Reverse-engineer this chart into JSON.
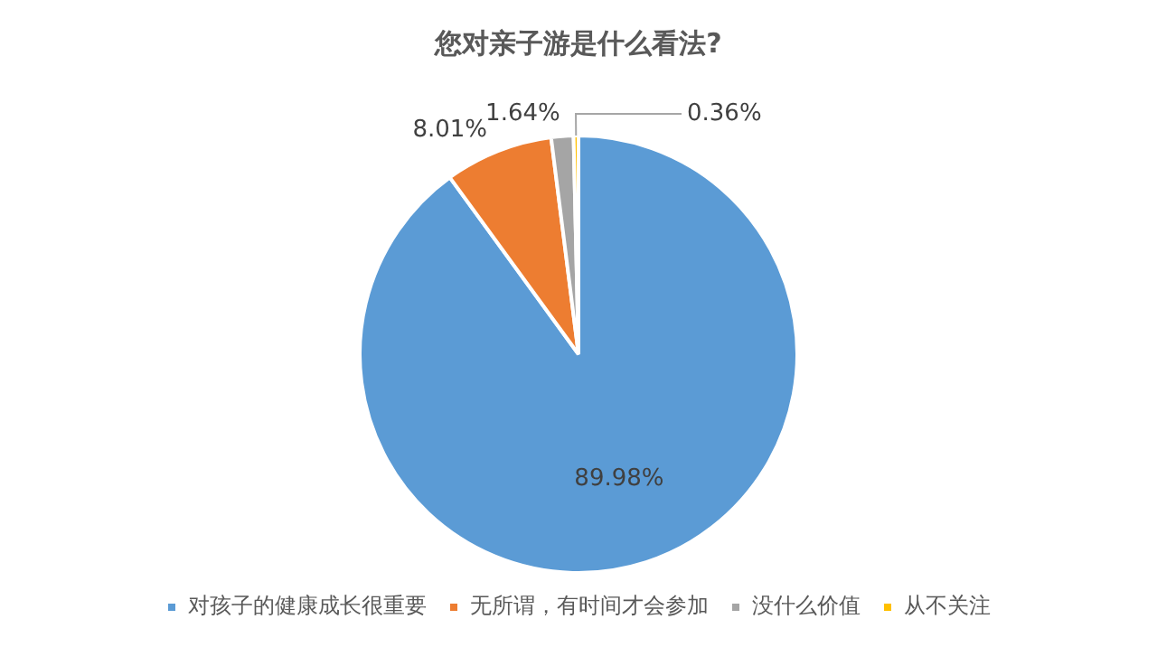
{
  "chart_data": {
    "type": "pie",
    "title": "您对亲子游是什么看法?",
    "categories": [
      "对孩子的健康成长很重要",
      "无所谓，有时间才会参加",
      "没什么价值",
      "从不关注"
    ],
    "values": [
      89.98,
      8.01,
      1.64,
      0.36
    ],
    "colors": [
      "#5b9bd5",
      "#ed7d31",
      "#a5a5a5",
      "#ffc000"
    ],
    "value_labels": [
      "89.98%",
      "8.01%",
      "1.64%",
      "0.36%"
    ],
    "legend": "bottom"
  }
}
